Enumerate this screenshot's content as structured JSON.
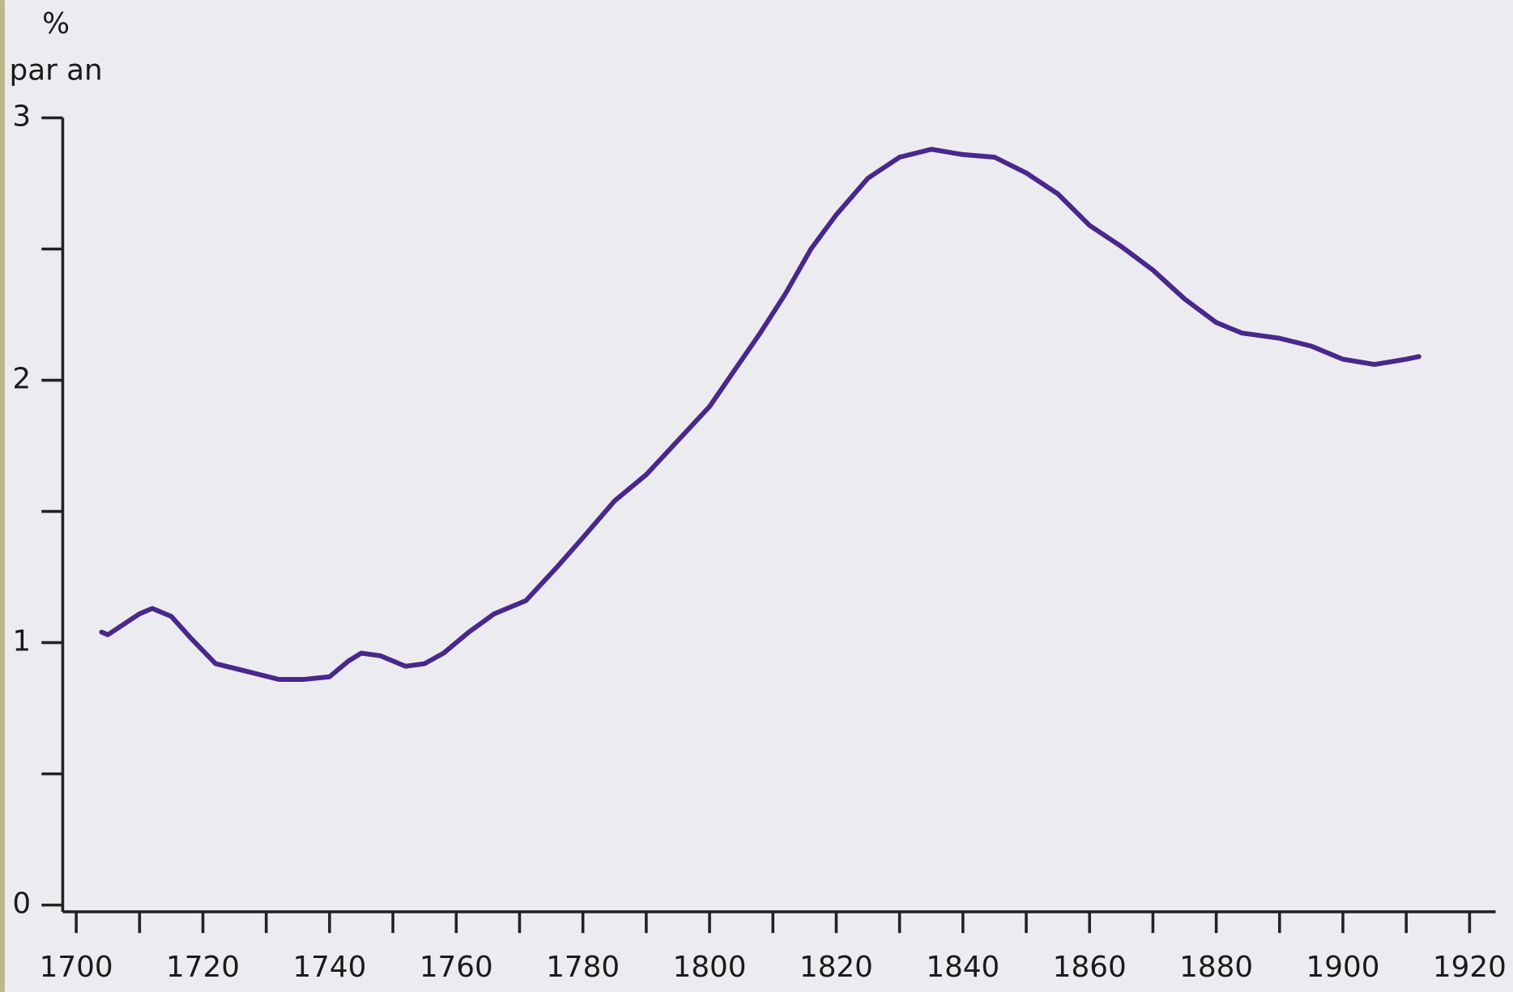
{
  "chart_data": {
    "type": "line",
    "ylabel": [
      "%",
      "par an"
    ],
    "x": [
      1704,
      1705,
      1710,
      1712,
      1715,
      1718,
      1722,
      1727,
      1732,
      1736,
      1740,
      1743,
      1745,
      1748,
      1752,
      1755,
      1758,
      1762,
      1766,
      1771,
      1776,
      1780,
      1785,
      1790,
      1795,
      1800,
      1804,
      1808,
      1812,
      1816,
      1820,
      1825,
      1830,
      1835,
      1840,
      1845,
      1850,
      1855,
      1860,
      1865,
      1870,
      1875,
      1880,
      1884,
      1890,
      1895,
      1900,
      1905,
      1910,
      1912
    ],
    "series": [
      {
        "color": "#48288c",
        "values": [
          1.04,
          1.03,
          1.11,
          1.13,
          1.1,
          1.02,
          0.92,
          0.89,
          0.86,
          0.86,
          0.87,
          0.93,
          0.96,
          0.95,
          0.91,
          0.92,
          0.96,
          1.04,
          1.11,
          1.16,
          1.29,
          1.4,
          1.54,
          1.64,
          1.77,
          1.9,
          2.04,
          2.18,
          2.33,
          2.5,
          2.63,
          2.77,
          2.85,
          2.88,
          2.86,
          2.85,
          2.79,
          2.71,
          2.59,
          2.51,
          2.42,
          2.31,
          2.22,
          2.18,
          2.16,
          2.13,
          2.08,
          2.06,
          2.08,
          2.09
        ]
      }
    ],
    "xlim": [
      1700,
      1920
    ],
    "xticks": [
      1700,
      1720,
      1740,
      1760,
      1780,
      1800,
      1820,
      1840,
      1860,
      1880,
      1900,
      1920
    ],
    "xminor_ticks": [
      1710,
      1730,
      1750,
      1770,
      1790,
      1810,
      1830,
      1850,
      1870,
      1890,
      1910
    ],
    "ylim": [
      0,
      3
    ],
    "yticks": [
      0,
      1,
      2,
      3
    ],
    "yminor_ticks": [
      0.5,
      1.5,
      2.5
    ]
  }
}
